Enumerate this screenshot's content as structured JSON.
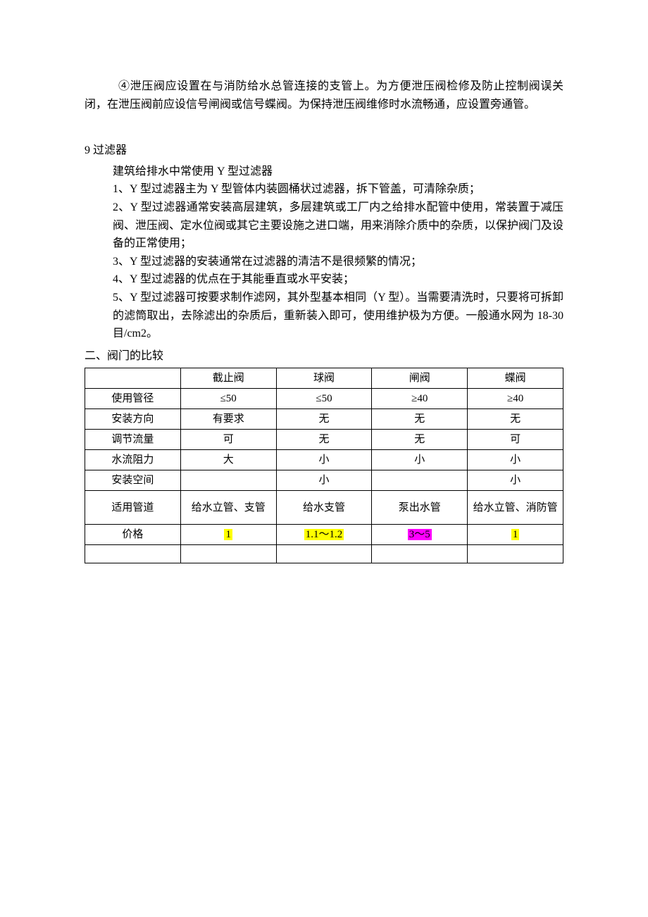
{
  "intro": {
    "p1": "④泄压阀应设置在与消防给水总管连接的支管上。为方便泄压阀检修及防止控制阀误关闭，在泄压阀前应设信号闸阀或信号蝶阀。为保持泄压阀维修时水流畅通，应设置旁通管。"
  },
  "section9": {
    "title": "9 过滤器",
    "lead": "建筑给排水中常使用 Y 型过滤器",
    "items": [
      "1、Y 型过滤器主为 Y 型管体内装圆桶状过滤器，拆下管盖，可清除杂质；",
      "2、Y 型过滤器通常安装高层建筑，多层建筑或工厂内之给排水配管中使用，常装置于减压阀、泄压阀、定水位阀或其它主要设施之进口端，用来消除介质中的杂质，以保护阀门及设备的正常使用；",
      "3、Y 型过滤器的安装通常在过滤器的清洁不是很频繁的情况；",
      "4、Y 型过滤器的优点在于其能垂直或水平安装；",
      "5、Y 型过滤器可按要求制作滤网，其外型基本相同（Y 型）。当需要清洗时，只要将可拆卸的滤筒取出，去除滤出的杂质后，重新装入即可，使用维护极为方便。一般通水网为 18-30 目/cm2。"
    ]
  },
  "compare": {
    "title": "二、阀门的比较",
    "header": [
      "",
      "截止阀",
      "球阀",
      "闸阀",
      "蝶阀"
    ],
    "rows": [
      {
        "label": "使用管径",
        "cells": [
          "≤50",
          "≤50",
          "≥40",
          "≥40"
        ]
      },
      {
        "label": "安装方向",
        "cells": [
          "有要求",
          "无",
          "无",
          "无"
        ]
      },
      {
        "label": "调节流量",
        "cells": [
          "可",
          "无",
          "无",
          "可"
        ]
      },
      {
        "label": "水流阻力",
        "cells": [
          "大",
          "小",
          "小",
          "小"
        ]
      },
      {
        "label": "安装空间",
        "cells": [
          "",
          "小",
          "",
          "小"
        ]
      },
      {
        "label": "适用管道",
        "cells": [
          "给水立管、支管",
          "给水支管",
          "泵出水管",
          "给水立管、消防管"
        ]
      },
      {
        "label": "价格",
        "cells": [
          "1",
          "1.1～1.2",
          "3～5",
          "1"
        ],
        "highlights": [
          "yellow",
          "yellow",
          "pink",
          "yellow"
        ]
      },
      {
        "label": "",
        "cells": [
          "",
          "",
          "",
          ""
        ]
      }
    ],
    "colors": {
      "highlight_yellow": "#ffff00",
      "highlight_pink": "#ff00ff",
      "border": "#000000",
      "background": "#ffffff",
      "text": "#000000"
    },
    "font_size_pt": 12
  }
}
